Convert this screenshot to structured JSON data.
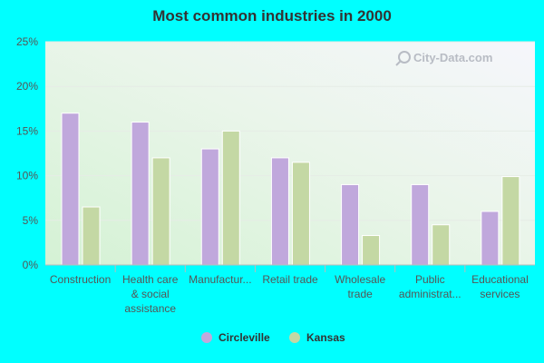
{
  "chart_data": {
    "type": "bar",
    "title": "Most common industries in 2000",
    "categories": [
      [
        "Construction"
      ],
      [
        "Health care",
        "& social",
        "assistance"
      ],
      [
        "Manufactur..."
      ],
      [
        "Retail trade"
      ],
      [
        "Wholesale",
        "trade"
      ],
      [
        "Public",
        "administrat..."
      ],
      [
        "Educational",
        "services"
      ]
    ],
    "series": [
      {
        "name": "Circleville",
        "color": "#c0a8dc",
        "values": [
          17,
          16,
          13,
          12,
          9,
          9,
          6
        ]
      },
      {
        "name": "Kansas",
        "color": "#c4d8a4",
        "values": [
          6.5,
          12,
          15,
          11.5,
          3.3,
          4.5,
          9.9
        ]
      }
    ],
    "yticks": [
      "0%",
      "5%",
      "10%",
      "15%",
      "20%",
      "25%"
    ],
    "ylim": [
      0,
      25
    ],
    "legend_position": "bottom",
    "watermark": "City-Data.com",
    "colors": {
      "background": "#00ffff"
    }
  }
}
